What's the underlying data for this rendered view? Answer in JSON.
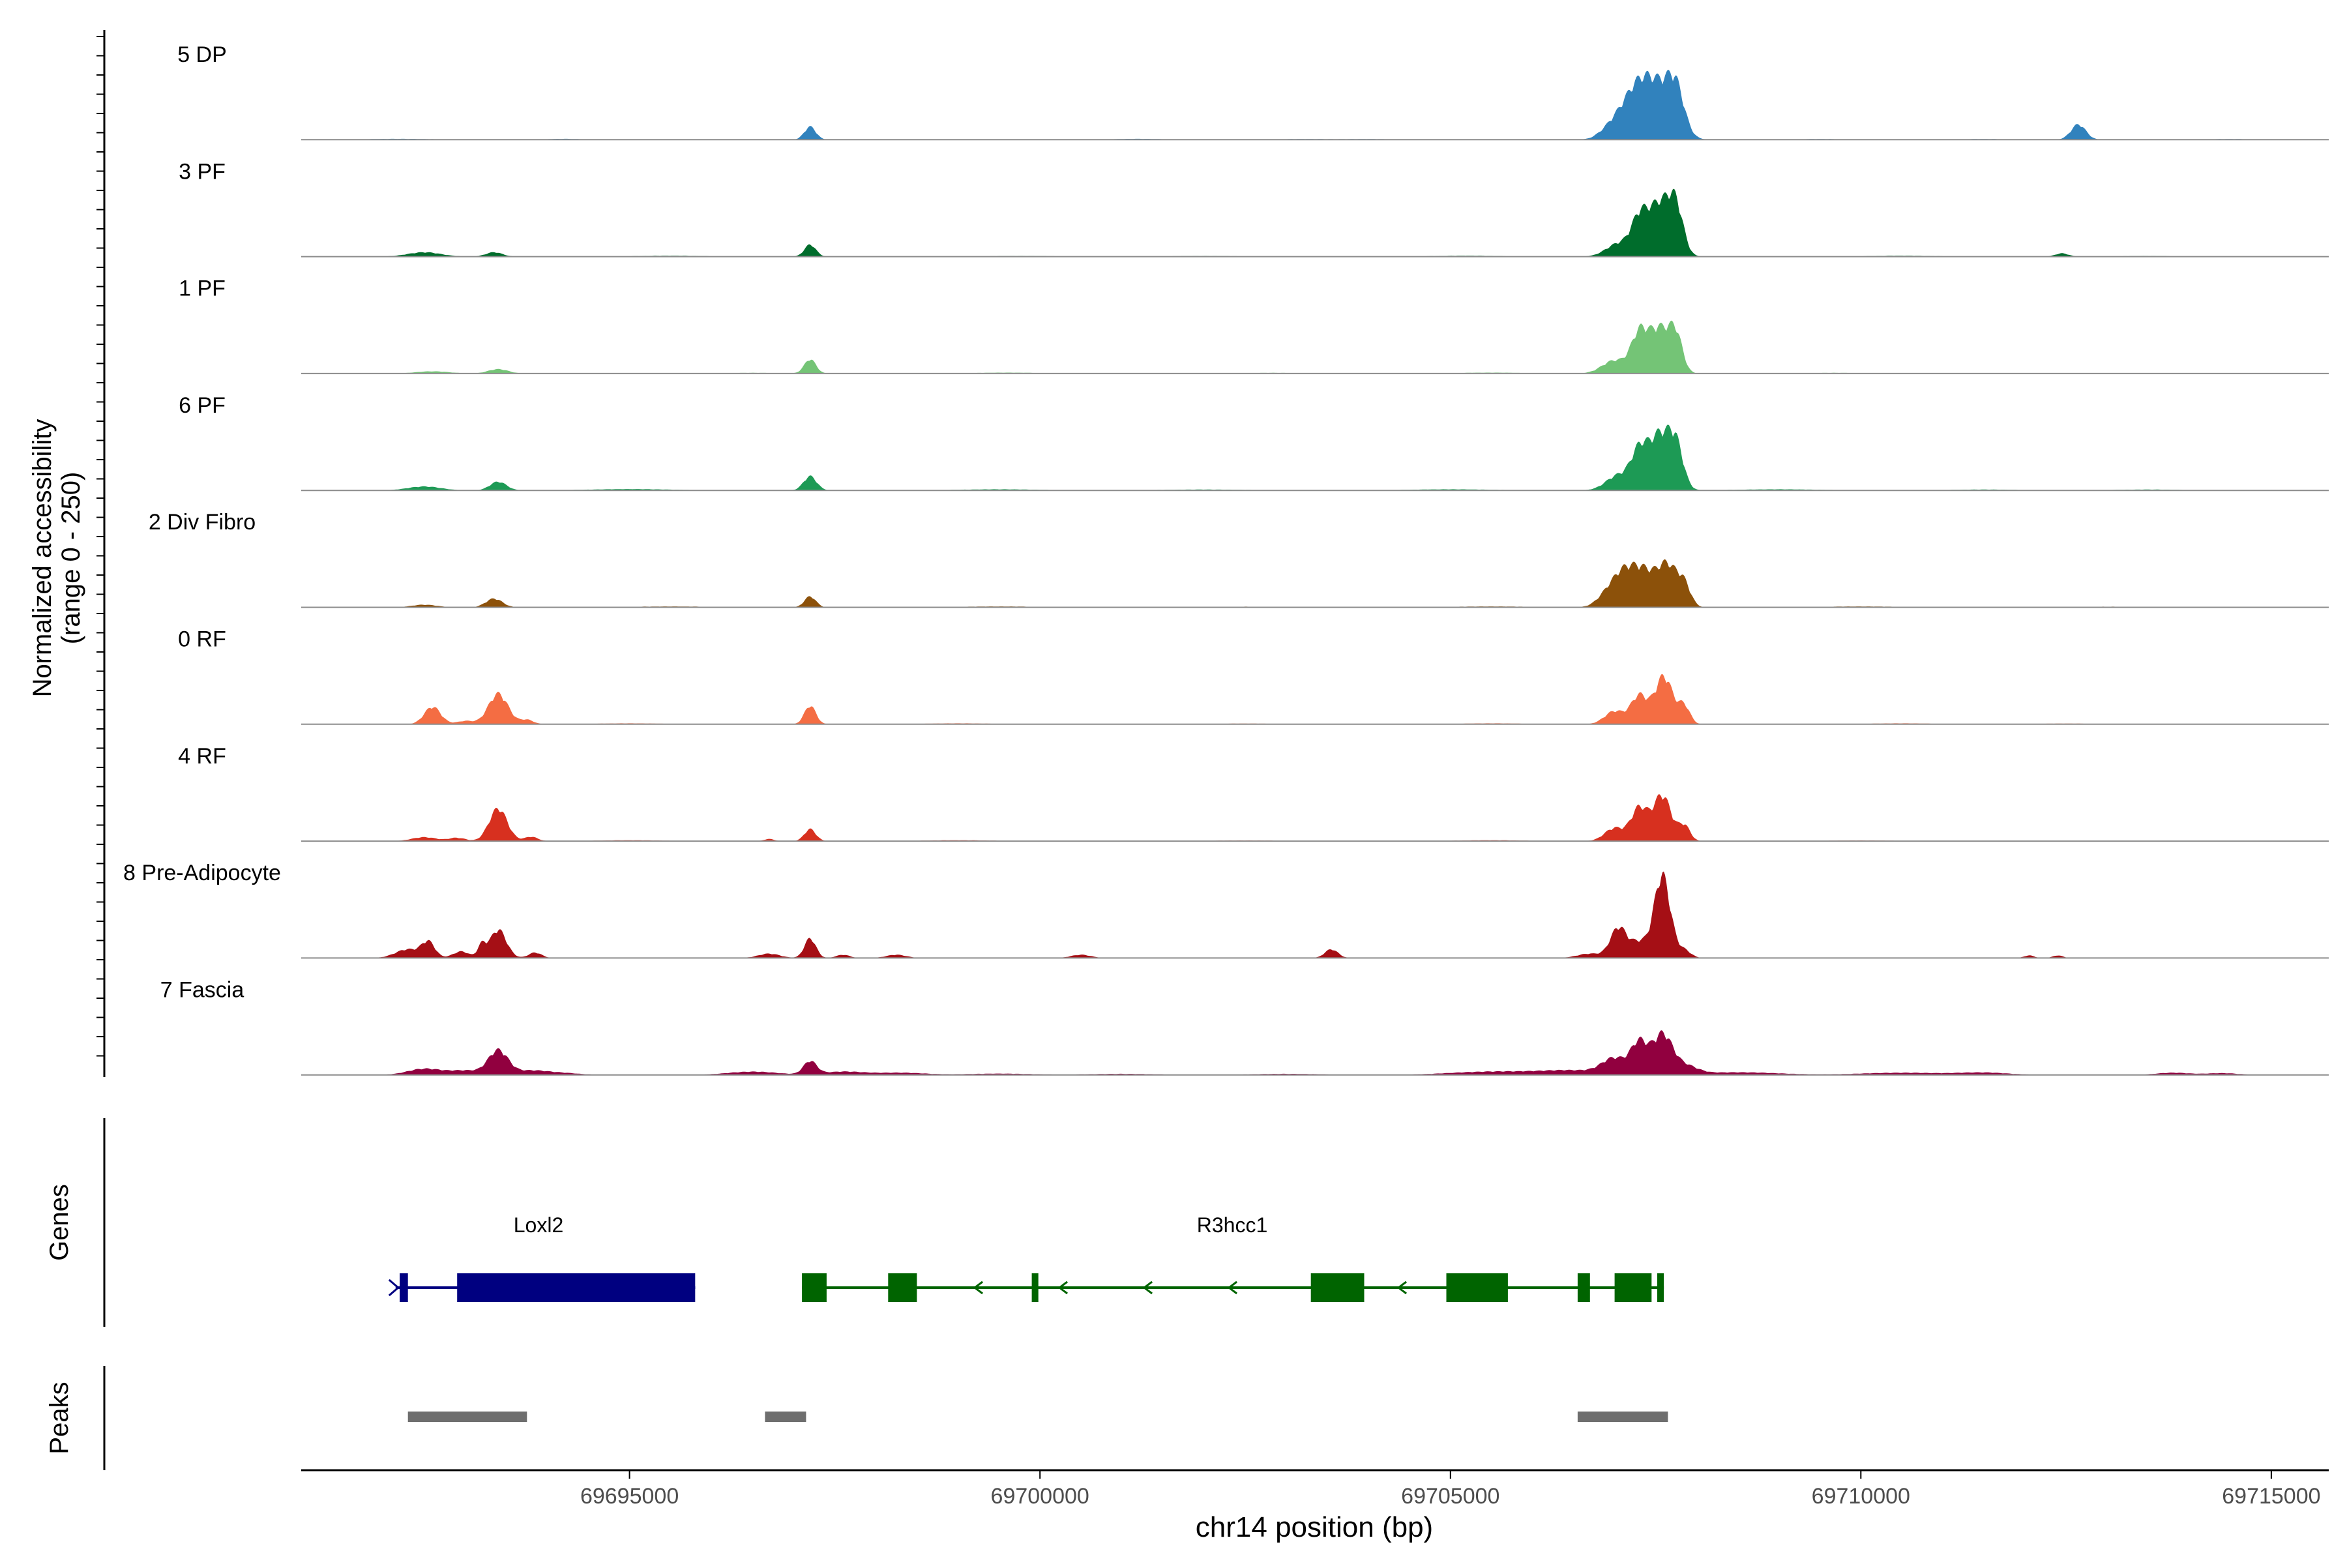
{
  "chart_data": {
    "type": "area",
    "subtype": "genome-coverage-track",
    "title": "",
    "xlabel": "chr14 position (bp)",
    "ylabel_line1": "Normalized accessibility",
    "ylabel_line2": "(range 0 - 250)",
    "ylim": [
      0,
      250
    ],
    "xlim": [
      69691000,
      69715700
    ],
    "x_ticks": [
      69695000,
      69700000,
      69705000,
      69710000,
      69715000
    ],
    "x_tick_labels": [
      "69695000",
      "69700000",
      "69705000",
      "69710000",
      "69715000"
    ],
    "grid": false,
    "legend": "none",
    "tracks": [
      {
        "label": "5 DP",
        "color": "#3182BD",
        "peaks": [
          [
            69697200,
            70,
            60
          ],
          [
            69706900,
            120,
            30
          ],
          [
            69707100,
            140,
            100
          ],
          [
            69707300,
            140,
            160
          ],
          [
            69707550,
            180,
            230
          ],
          [
            69707750,
            100,
            160
          ],
          [
            69712650,
            90,
            70
          ],
          [
            69692200,
            400,
            4
          ],
          [
            69694200,
            200,
            4
          ],
          [
            69701200,
            300,
            4
          ],
          [
            69703200,
            300,
            3
          ],
          [
            69704000,
            300,
            3
          ],
          [
            69709500,
            300,
            3
          ],
          [
            69711500,
            300,
            3
          ],
          [
            69714500,
            300,
            3
          ]
        ]
      },
      {
        "label": "3 PF",
        "color": "#006D2C",
        "peaks": [
          [
            69692500,
            200,
            20
          ],
          [
            69693350,
            100,
            20
          ],
          [
            69697200,
            70,
            55
          ],
          [
            69707050,
            150,
            60
          ],
          [
            69707300,
            100,
            150
          ],
          [
            69707550,
            140,
            240
          ],
          [
            69707750,
            90,
            190
          ],
          [
            69712450,
            80,
            15
          ],
          [
            69695500,
            400,
            4
          ],
          [
            69699800,
            400,
            3
          ],
          [
            69702000,
            400,
            3
          ],
          [
            69705200,
            400,
            4
          ],
          [
            69710500,
            400,
            4
          ],
          [
            69713500,
            300,
            3
          ]
        ]
      },
      {
        "label": "1 PF",
        "color": "#74C476",
        "peaks": [
          [
            69692600,
            200,
            10
          ],
          [
            69693400,
            120,
            20
          ],
          [
            69697200,
            70,
            65
          ],
          [
            69707000,
            150,
            60
          ],
          [
            69707300,
            100,
            170
          ],
          [
            69707550,
            130,
            205
          ],
          [
            69707750,
            80,
            150
          ],
          [
            69696500,
            400,
            3
          ],
          [
            69699600,
            400,
            4
          ],
          [
            69702800,
            400,
            3
          ],
          [
            69705500,
            400,
            4
          ],
          [
            69709700,
            400,
            3
          ]
        ]
      },
      {
        "label": "6 PF",
        "color": "#1D9A55",
        "peaks": [
          [
            69692500,
            200,
            18
          ],
          [
            69693400,
            100,
            40
          ],
          [
            69697200,
            80,
            65
          ],
          [
            69707050,
            150,
            70
          ],
          [
            69707300,
            100,
            160
          ],
          [
            69707550,
            130,
            250
          ],
          [
            69707750,
            90,
            180
          ],
          [
            69695000,
            500,
            6
          ],
          [
            69699500,
            500,
            5
          ],
          [
            69702000,
            500,
            4
          ],
          [
            69705000,
            500,
            5
          ],
          [
            69709000,
            500,
            5
          ],
          [
            69711500,
            400,
            4
          ],
          [
            69713500,
            400,
            4
          ]
        ]
      },
      {
        "label": "2 Div Fibro",
        "color": "#8C510A",
        "peaks": [
          [
            69692500,
            150,
            12
          ],
          [
            69693350,
            100,
            40
          ],
          [
            69697200,
            70,
            50
          ],
          [
            69706900,
            120,
            50
          ],
          [
            69707100,
            130,
            130
          ],
          [
            69707350,
            150,
            160
          ],
          [
            69707650,
            120,
            180
          ],
          [
            69707850,
            80,
            90
          ],
          [
            69695500,
            500,
            4
          ],
          [
            69699500,
            500,
            4
          ],
          [
            69702500,
            500,
            3
          ],
          [
            69705500,
            500,
            4
          ],
          [
            69710000,
            500,
            4
          ],
          [
            69713000,
            500,
            3
          ]
        ]
      },
      {
        "label": "0 RF",
        "color": "#F46D43",
        "peaks": [
          [
            69692600,
            100,
            80
          ],
          [
            69693000,
            100,
            15
          ],
          [
            69693400,
            120,
            140
          ],
          [
            69693750,
            80,
            20
          ],
          [
            69697200,
            70,
            85
          ],
          [
            69707000,
            120,
            60
          ],
          [
            69707300,
            100,
            130
          ],
          [
            69707600,
            110,
            220
          ],
          [
            69707850,
            70,
            80
          ],
          [
            69695000,
            400,
            4
          ],
          [
            69699000,
            400,
            4
          ],
          [
            69702500,
            400,
            3
          ],
          [
            69705500,
            400,
            4
          ],
          [
            69710500,
            400,
            4
          ],
          [
            69712500,
            400,
            3
          ]
        ]
      },
      {
        "label": "4 RF",
        "color": "#D7301F",
        "peaks": [
          [
            69692500,
            150,
            18
          ],
          [
            69692900,
            100,
            15
          ],
          [
            69693400,
            110,
            150
          ],
          [
            69693800,
            80,
            20
          ],
          [
            69697200,
            70,
            55
          ],
          [
            69696700,
            60,
            10
          ],
          [
            69707000,
            120,
            60
          ],
          [
            69707300,
            100,
            150
          ],
          [
            69707580,
            110,
            210
          ],
          [
            69707850,
            70,
            70
          ],
          [
            69695000,
            400,
            4
          ],
          [
            69699000,
            400,
            4
          ],
          [
            69702500,
            400,
            3
          ],
          [
            69705500,
            400,
            4
          ],
          [
            69710000,
            400,
            3
          ]
        ]
      },
      {
        "label": "8 Pre-Adipocyte",
        "color": "#A50F15",
        "peaks": [
          [
            69692300,
            150,
            40
          ],
          [
            69692550,
            80,
            70
          ],
          [
            69692950,
            100,
            30
          ],
          [
            69693200,
            50,
            55
          ],
          [
            69693400,
            100,
            130
          ],
          [
            69693850,
            80,
            25
          ],
          [
            69696700,
            130,
            20
          ],
          [
            69697200,
            70,
            90
          ],
          [
            69697600,
            80,
            15
          ],
          [
            69698250,
            120,
            15
          ],
          [
            69700500,
            120,
            15
          ],
          [
            69703550,
            80,
            40
          ],
          [
            69706700,
            150,
            20
          ],
          [
            69707050,
            100,
            140
          ],
          [
            69707300,
            100,
            70
          ],
          [
            69707580,
            100,
            380
          ],
          [
            69707850,
            80,
            35
          ],
          [
            69712050,
            60,
            12
          ],
          [
            69712400,
            60,
            12
          ]
        ]
      },
      {
        "label": "7 Fascia",
        "color": "#91003F",
        "peaks": [
          [
            69692500,
            200,
            28
          ],
          [
            69693000,
            200,
            20
          ],
          [
            69693400,
            120,
            110
          ],
          [
            69693800,
            200,
            20
          ],
          [
            69694200,
            200,
            8
          ],
          [
            69696500,
            300,
            15
          ],
          [
            69697200,
            80,
            60
          ],
          [
            69697600,
            250,
            15
          ],
          [
            69698300,
            300,
            10
          ],
          [
            69699500,
            400,
            6
          ],
          [
            69701000,
            400,
            5
          ],
          [
            69703000,
            400,
            5
          ],
          [
            69705500,
            500,
            15
          ],
          [
            69706500,
            400,
            20
          ],
          [
            69707000,
            150,
            70
          ],
          [
            69707300,
            100,
            140
          ],
          [
            69707580,
            120,
            180
          ],
          [
            69707850,
            150,
            40
          ],
          [
            69708500,
            500,
            12
          ],
          [
            69710500,
            500,
            10
          ],
          [
            69711500,
            300,
            10
          ],
          [
            69713800,
            200,
            10
          ],
          [
            69714400,
            200,
            8
          ]
        ]
      }
    ],
    "genes": [
      {
        "name": "Loxl2",
        "strand": "-",
        "color": "#000080",
        "line": [
          69692150,
          69695800
        ],
        "exons": [
          [
            69692200,
            69692300
          ],
          [
            69692900,
            69695800
          ]
        ]
      },
      {
        "name": "R3hcc1",
        "strand": "-",
        "color": "#006400",
        "line": [
          69697100,
          69707600
        ],
        "exons": [
          [
            69697100,
            69697400
          ],
          [
            69698150,
            69698500
          ],
          [
            69699900,
            69699980
          ],
          [
            69703300,
            69703950
          ],
          [
            69704950,
            69705700
          ],
          [
            69706550,
            69706700
          ],
          [
            69707000,
            69707450
          ],
          [
            69707520,
            69707600
          ]
        ]
      }
    ],
    "peak_regions": [
      [
        69692300,
        69693750
      ],
      [
        69696650,
        69697150
      ],
      [
        69706550,
        69707650
      ]
    ],
    "panel_labels": {
      "genes": "Genes",
      "peaks": "Peaks"
    }
  }
}
